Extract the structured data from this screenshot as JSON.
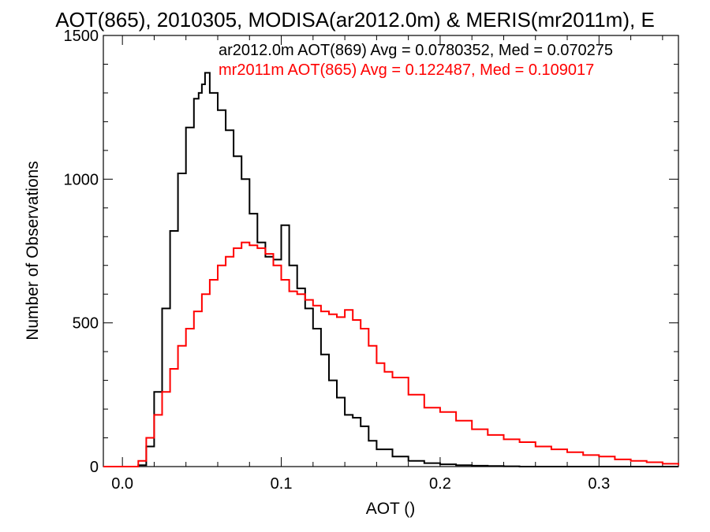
{
  "chart_data": {
    "type": "line",
    "step": true,
    "title": "AOT(865), 2010305, MODISA(ar2012.0m) & MERIS(mr2011m), E",
    "xlabel": "AOT ()",
    "ylabel": "Number of Observations",
    "xlim": [
      -0.012,
      0.35
    ],
    "ylim": [
      0,
      1500
    ],
    "xticks": [
      0.0,
      0.1,
      0.2,
      0.3
    ],
    "xtick_labels": [
      "0.0",
      "0.1",
      "0.2",
      "0.3"
    ],
    "yticks": [
      0,
      500,
      1000,
      1500
    ],
    "ytick_labels": [
      "0",
      "500",
      "1000",
      "1500"
    ],
    "grid": false,
    "legend_position": "top-right",
    "series": [
      {
        "label": "ar2012.0m AOT(869) Avg = 0.0780352, Med = 0.070275",
        "color": "#000000",
        "x": [
          -0.012,
          0.0,
          0.01,
          0.015,
          0.02,
          0.025,
          0.03,
          0.035,
          0.04,
          0.045,
          0.048,
          0.05,
          0.052,
          0.055,
          0.06,
          0.065,
          0.07,
          0.075,
          0.08,
          0.085,
          0.09,
          0.095,
          0.1,
          0.105,
          0.11,
          0.115,
          0.12,
          0.125,
          0.13,
          0.135,
          0.14,
          0.145,
          0.15,
          0.155,
          0.16,
          0.17,
          0.18,
          0.19,
          0.2,
          0.21,
          0.22,
          0.23,
          0.24,
          0.25,
          0.35
        ],
        "y": [
          0,
          0,
          5,
          70,
          260,
          550,
          820,
          1020,
          1180,
          1280,
          1300,
          1330,
          1370,
          1300,
          1240,
          1170,
          1080,
          1000,
          880,
          780,
          730,
          720,
          840,
          700,
          620,
          550,
          480,
          390,
          300,
          240,
          180,
          170,
          140,
          90,
          60,
          35,
          20,
          12,
          8,
          5,
          3,
          2,
          1,
          0,
          0
        ]
      },
      {
        "label": "mr2011m AOT(865) Avg = 0.122487, Med = 0.109017",
        "color": "#ff0000",
        "x": [
          -0.012,
          0.0,
          0.01,
          0.015,
          0.02,
          0.025,
          0.03,
          0.035,
          0.04,
          0.045,
          0.05,
          0.055,
          0.06,
          0.065,
          0.07,
          0.075,
          0.08,
          0.085,
          0.09,
          0.095,
          0.1,
          0.105,
          0.11,
          0.115,
          0.12,
          0.125,
          0.13,
          0.135,
          0.14,
          0.145,
          0.15,
          0.155,
          0.16,
          0.165,
          0.17,
          0.18,
          0.19,
          0.2,
          0.21,
          0.22,
          0.23,
          0.24,
          0.25,
          0.26,
          0.27,
          0.28,
          0.29,
          0.3,
          0.31,
          0.32,
          0.33,
          0.34,
          0.35
        ],
        "y": [
          0,
          0,
          20,
          100,
          180,
          260,
          340,
          420,
          480,
          540,
          600,
          650,
          700,
          730,
          760,
          780,
          770,
          760,
          740,
          700,
          650,
          610,
          600,
          580,
          560,
          540,
          530,
          520,
          545,
          510,
          480,
          420,
          360,
          330,
          310,
          250,
          205,
          190,
          160,
          130,
          110,
          95,
          85,
          70,
          60,
          50,
          40,
          35,
          25,
          20,
          15,
          10,
          5
        ]
      }
    ]
  }
}
